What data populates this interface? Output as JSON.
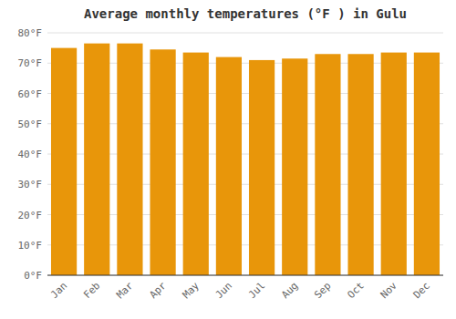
{
  "chart_data": {
    "type": "bar",
    "title": "Average monthly temperatures (°F ) in Gulu",
    "categories": [
      "Jan",
      "Feb",
      "Mar",
      "Apr",
      "May",
      "Jun",
      "Jul",
      "Aug",
      "Sep",
      "Oct",
      "Nov",
      "Dec"
    ],
    "values": [
      75.0,
      76.5,
      76.5,
      74.5,
      73.5,
      72.0,
      71.0,
      71.5,
      73.0,
      73.0,
      73.5,
      73.5
    ],
    "color": "#E8960A",
    "ylim": [
      0,
      80
    ],
    "yticks": [
      {
        "value": 0,
        "label": "0°F"
      },
      {
        "value": 10,
        "label": "10°F"
      },
      {
        "value": 20,
        "label": "20°F"
      },
      {
        "value": 30,
        "label": "30°F"
      },
      {
        "value": 40,
        "label": "40°F"
      },
      {
        "value": 50,
        "label": "50°F"
      },
      {
        "value": 60,
        "label": "60°F"
      },
      {
        "value": 70,
        "label": "70°F"
      },
      {
        "value": 80,
        "label": "80°F"
      }
    ],
    "grid": true
  }
}
